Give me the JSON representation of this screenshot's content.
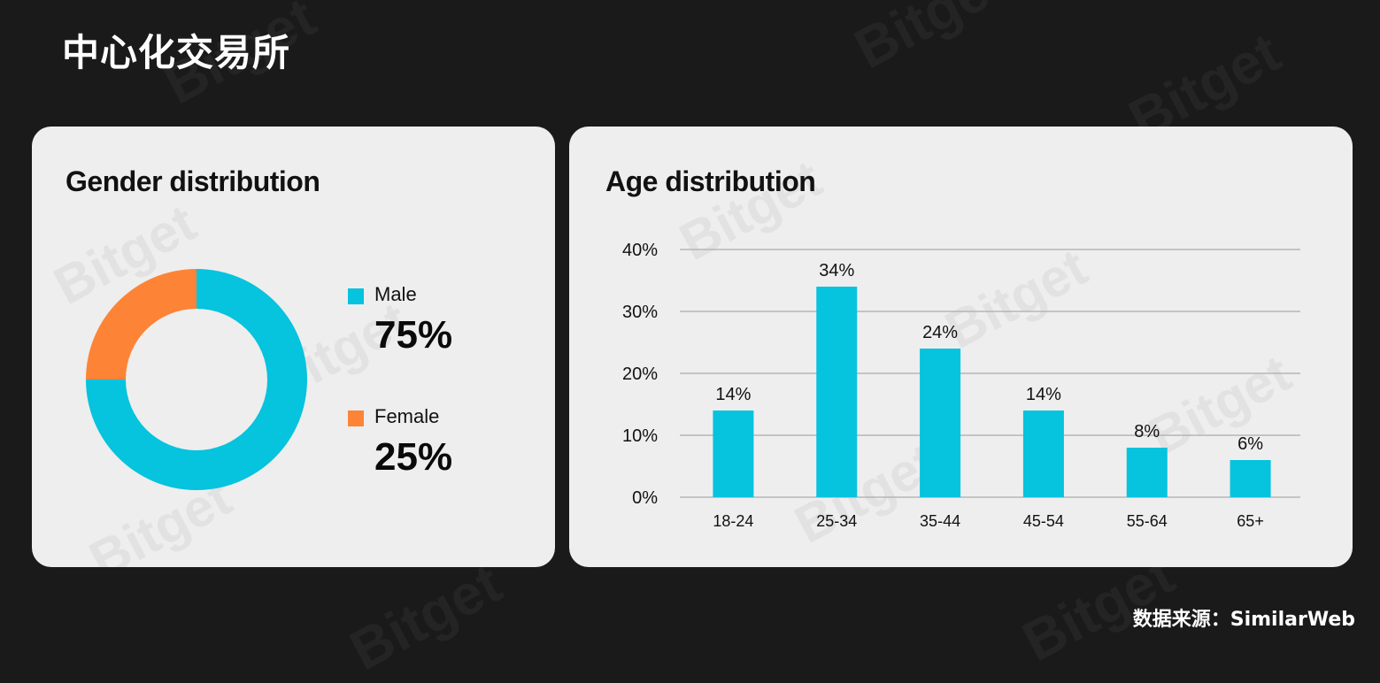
{
  "page": {
    "title": "中心化交易所",
    "source": "数据来源：SimilarWeb",
    "watermark": "Bitget"
  },
  "colors": {
    "male": "#06c3de",
    "female": "#fd8436",
    "bar": "#06c3de",
    "grid": "#b5b5b5"
  },
  "chart_data": [
    {
      "type": "pie",
      "title": "Gender distribution",
      "donut": true,
      "slices": [
        {
          "label": "Male",
          "value": 75,
          "display": "75%",
          "color": "#06c3de"
        },
        {
          "label": "Female",
          "value": 25,
          "display": "25%",
          "color": "#fd8436"
        }
      ],
      "legend": "right"
    },
    {
      "type": "bar",
      "title": "Age distribution",
      "categories": [
        "18-24",
        "25-34",
        "35-44",
        "45-54",
        "55-64",
        "65+"
      ],
      "values": [
        14,
        34,
        24,
        14,
        8,
        6
      ],
      "value_labels": [
        "14%",
        "34%",
        "24%",
        "14%",
        "8%",
        "6%"
      ],
      "ylim": [
        0,
        40
      ],
      "yticks": [
        0,
        10,
        20,
        30,
        40
      ],
      "ytick_labels": [
        "0%",
        "10%",
        "20%",
        "30%",
        "40%"
      ],
      "xlabel": "",
      "ylabel": "",
      "grid": true
    }
  ]
}
